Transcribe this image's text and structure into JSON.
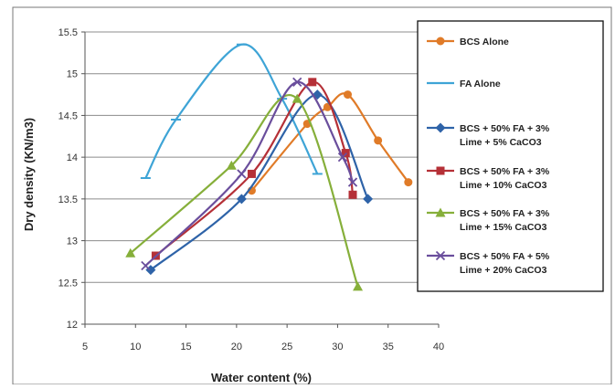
{
  "chart_data": {
    "type": "line",
    "xlabel": "Water content (%)",
    "ylabel": "Dry density (KN/m3)",
    "xlim": [
      5,
      40
    ],
    "ylim": [
      12,
      15.5
    ],
    "xticks": [
      "5",
      "10",
      "15",
      "20",
      "25",
      "30",
      "35",
      "40"
    ],
    "yticks": [
      "12",
      "12.5",
      "13",
      "13.5",
      "14",
      "14.5",
      "15",
      "15.5"
    ],
    "grid": "horizontal",
    "legend_position": "right",
    "series": [
      {
        "name": "BCS Alone",
        "color": "#E07B28",
        "marker": "circle",
        "points": [
          [
            21.5,
            13.6
          ],
          [
            27,
            14.4
          ],
          [
            29,
            14.6
          ],
          [
            31,
            14.75
          ],
          [
            34,
            14.2
          ],
          [
            37,
            13.7
          ]
        ]
      },
      {
        "name": "FA Alone",
        "color": "#3EA4D6",
        "marker": "dash",
        "points": [
          [
            11,
            13.75
          ],
          [
            14,
            14.45
          ],
          [
            20.5,
            15.35
          ],
          [
            24.5,
            14.7
          ],
          [
            28,
            13.8
          ]
        ]
      },
      {
        "name": "BCS + 50% FA + 3% Lime + 5% CaCO3",
        "color": "#2E63A8",
        "marker": "diamond",
        "points": [
          [
            11.5,
            12.65
          ],
          [
            20.5,
            13.5
          ],
          [
            28,
            14.75
          ],
          [
            33,
            13.5
          ]
        ]
      },
      {
        "name": "BCS + 50% FA + 3% Lime + 10% CaCO3",
        "color": "#B53037",
        "marker": "square",
        "points": [
          [
            12,
            12.82
          ],
          [
            21.5,
            13.8
          ],
          [
            27.5,
            14.9
          ],
          [
            30.8,
            14.05
          ],
          [
            31.5,
            13.55
          ]
        ]
      },
      {
        "name": "BCS + 50% FA + 3% Lime + 15% CaCO3",
        "color": "#86AF3A",
        "marker": "triangle",
        "points": [
          [
            9.5,
            12.85
          ],
          [
            19.5,
            13.9
          ],
          [
            26,
            14.7
          ],
          [
            32,
            12.45
          ]
        ]
      },
      {
        "name": "BCS + 50% FA + 5% Lime + 20% CaCO3",
        "color": "#6A4E9C",
        "marker": "x",
        "points": [
          [
            11,
            12.7
          ],
          [
            20.5,
            13.8
          ],
          [
            26,
            14.9
          ],
          [
            30.5,
            14
          ],
          [
            31.5,
            13.7
          ]
        ]
      }
    ]
  }
}
